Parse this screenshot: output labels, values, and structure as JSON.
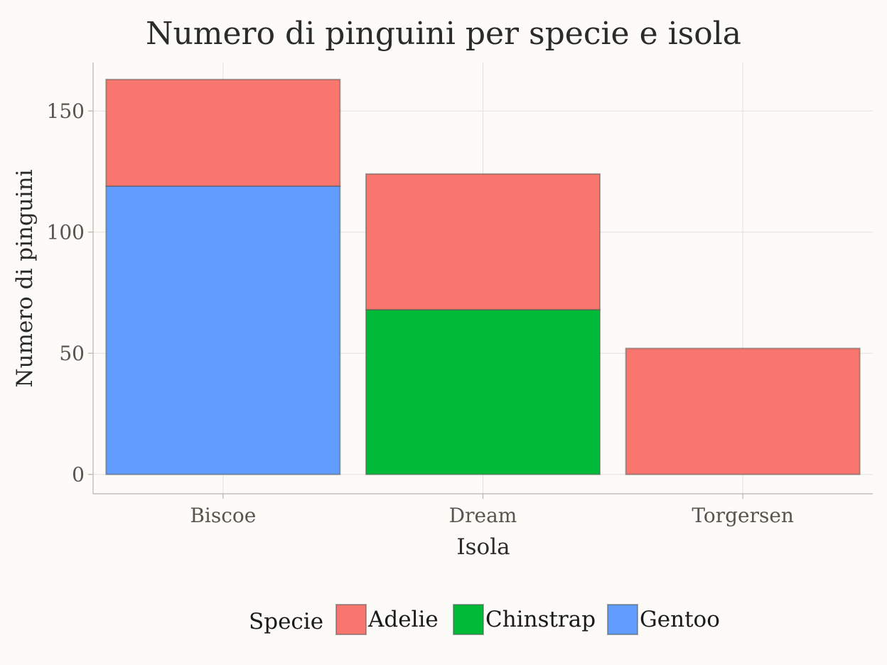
{
  "chart_data": {
    "type": "bar",
    "stacked": true,
    "title": "Numero di pinguini per specie e isola",
    "xlabel": "Isola",
    "ylabel": "Numero di pinguini",
    "categories": [
      "Biscoe",
      "Dream",
      "Torgersen"
    ],
    "series": [
      {
        "name": "Gentoo",
        "color": "#619cff",
        "values": [
          119,
          0,
          0
        ]
      },
      {
        "name": "Chinstrap",
        "color": "#00ba38",
        "values": [
          0,
          68,
          0
        ]
      },
      {
        "name": "Adelie",
        "color": "#f8766d",
        "values": [
          44,
          56,
          52
        ]
      }
    ],
    "yticks": [
      "0",
      "50",
      "100",
      "150"
    ],
    "ylim": [
      -8,
      170
    ],
    "grid": true,
    "legend": {
      "title": "Specie",
      "position": "bottom",
      "items": [
        "Adelie",
        "Chinstrap",
        "Gentoo"
      ]
    }
  }
}
